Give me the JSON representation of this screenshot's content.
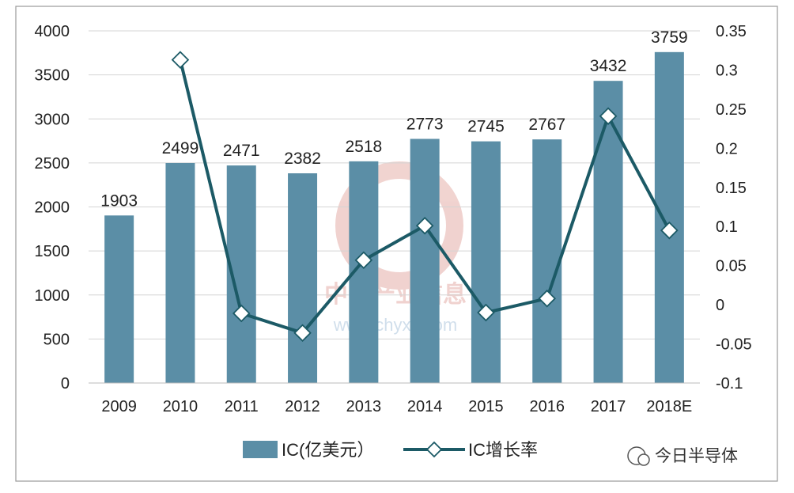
{
  "chart_data": {
    "type": "bar",
    "title": "",
    "categories": [
      "2009",
      "2010",
      "2011",
      "2012",
      "2013",
      "2014",
      "2015",
      "2016",
      "2017",
      "2018E"
    ],
    "series": [
      {
        "name": "IC(亿美元）",
        "type": "bar",
        "axis": "left",
        "color": "#5b8ea6",
        "values": [
          1903,
          2499,
          2471,
          2382,
          2518,
          2773,
          2745,
          2767,
          3432,
          3759
        ],
        "labels": [
          "1903",
          "2499",
          "2471",
          "2382",
          "2518",
          "2773",
          "2745",
          "2767",
          "3432",
          "3759"
        ]
      },
      {
        "name": "IC增长率",
        "type": "line",
        "axis": "right",
        "color": "#1c5a66",
        "marker": "diamond",
        "values": [
          null,
          0.313,
          -0.011,
          -0.036,
          0.057,
          0.101,
          -0.01,
          0.008,
          0.241,
          0.095
        ]
      }
    ],
    "yaxis_left": {
      "min": 0,
      "max": 4000,
      "ticks": [
        "0",
        "500",
        "1000",
        "1500",
        "2000",
        "2500",
        "3000",
        "3500",
        "4000"
      ]
    },
    "yaxis_right": {
      "min": -0.1,
      "max": 0.35,
      "ticks": [
        "-0.1",
        "-0.05",
        "0",
        "0.05",
        "0.1",
        "0.15",
        "0.2",
        "0.25",
        "0.3",
        "0.35"
      ]
    },
    "grid": true,
    "legend": "bottom"
  },
  "watermark": {
    "line1": "中国产业信息",
    "line2": "www.chyxx.com"
  },
  "source_badge": {
    "text": "今日半导体"
  }
}
